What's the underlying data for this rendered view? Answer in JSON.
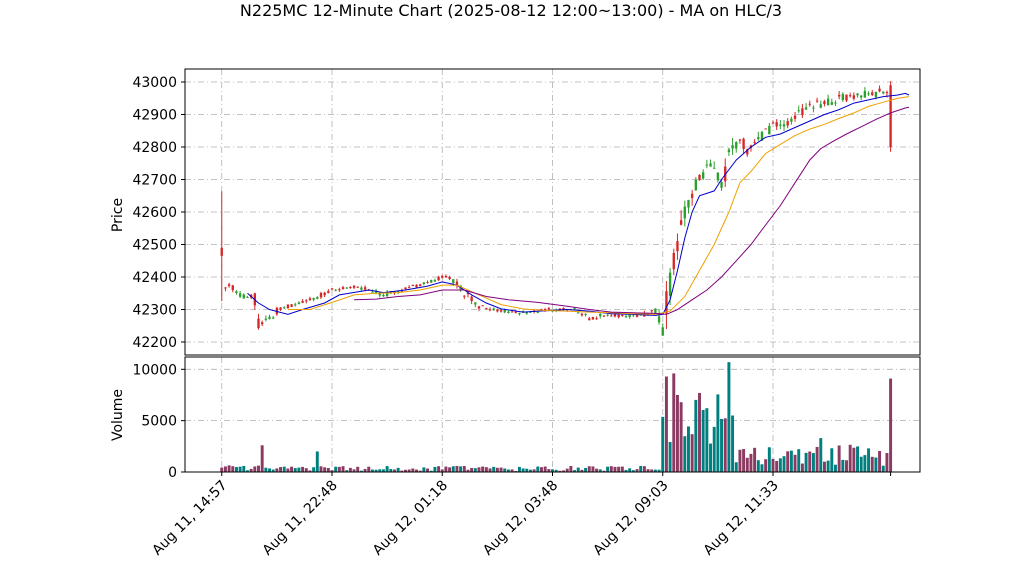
{
  "chart_data": {
    "type": "candlestick",
    "title": "N225MC 12-Minute Chart (2025-08-12 12:00~13:00) - MA on HLC/3",
    "price_panel": {
      "ylabel": "Price",
      "ylim": [
        42160,
        43040
      ],
      "yticks": [
        42200,
        42300,
        42400,
        42500,
        42600,
        42700,
        42800,
        42900,
        43000
      ],
      "grid": true
    },
    "volume_panel": {
      "ylabel": "Volume",
      "ylim": [
        0,
        11200
      ],
      "yticks": [
        0,
        5000,
        10000
      ],
      "grid": true
    },
    "x_axis": {
      "range": [
        -10,
        190
      ],
      "tick_labels": [
        "Aug 11, 14:57",
        "Aug 11, 22:48",
        "Aug 12, 01:18",
        "Aug 12, 03:48",
        "Aug 12, 09:03",
        "Aug 12, 11:33"
      ],
      "tick_positions": [
        0,
        30,
        60,
        90,
        120,
        150
      ]
    },
    "colors": {
      "up": "#2ca02c",
      "down": "#d62728",
      "volume_up": "#007f7f",
      "volume_down": "#8b3a62",
      "ma_fast": "#0000cc",
      "ma_mid": "#f0a000",
      "ma_slow": "#800080",
      "grid": "#b0b0b0"
    },
    "ma_series": [
      {
        "color_key": "ma_fast",
        "points": [
          [
            7,
            42350
          ],
          [
            10,
            42320
          ],
          [
            13,
            42300
          ],
          [
            18,
            42285
          ],
          [
            22,
            42300
          ],
          [
            28,
            42320
          ],
          [
            32,
            42345
          ],
          [
            40,
            42360
          ],
          [
            44,
            42352
          ],
          [
            50,
            42360
          ],
          [
            56,
            42372
          ],
          [
            60,
            42385
          ],
          [
            64,
            42375
          ],
          [
            68,
            42345
          ],
          [
            72,
            42320
          ],
          [
            76,
            42302
          ],
          [
            82,
            42292
          ],
          [
            88,
            42296
          ],
          [
            94,
            42300
          ],
          [
            100,
            42295
          ],
          [
            106,
            42287
          ],
          [
            112,
            42285
          ],
          [
            118,
            42282
          ],
          [
            120,
            42285
          ],
          [
            122,
            42330
          ],
          [
            124,
            42420
          ],
          [
            126,
            42520
          ],
          [
            128,
            42600
          ],
          [
            130,
            42650
          ],
          [
            134,
            42665
          ],
          [
            136,
            42700
          ],
          [
            140,
            42760
          ],
          [
            144,
            42800
          ],
          [
            148,
            42830
          ],
          [
            152,
            42840
          ],
          [
            156,
            42860
          ],
          [
            160,
            42880
          ],
          [
            164,
            42900
          ],
          [
            168,
            42915
          ],
          [
            172,
            42935
          ],
          [
            176,
            42945
          ],
          [
            180,
            42955
          ],
          [
            184,
            42960
          ],
          [
            186,
            42965
          ],
          [
            187,
            42960
          ]
        ]
      },
      {
        "color_key": "ma_mid",
        "points": [
          [
            18,
            42300
          ],
          [
            24,
            42300
          ],
          [
            30,
            42322
          ],
          [
            36,
            42345
          ],
          [
            42,
            42350
          ],
          [
            48,
            42352
          ],
          [
            54,
            42360
          ],
          [
            60,
            42375
          ],
          [
            64,
            42375
          ],
          [
            70,
            42345
          ],
          [
            76,
            42315
          ],
          [
            82,
            42302
          ],
          [
            88,
            42297
          ],
          [
            94,
            42295
          ],
          [
            100,
            42292
          ],
          [
            106,
            42290
          ],
          [
            112,
            42287
          ],
          [
            118,
            42285
          ],
          [
            122,
            42295
          ],
          [
            126,
            42340
          ],
          [
            130,
            42420
          ],
          [
            134,
            42500
          ],
          [
            138,
            42600
          ],
          [
            141,
            42690
          ],
          [
            144,
            42725
          ],
          [
            148,
            42780
          ],
          [
            152,
            42808
          ],
          [
            156,
            42835
          ],
          [
            160,
            42855
          ],
          [
            164,
            42870
          ],
          [
            168,
            42888
          ],
          [
            172,
            42905
          ],
          [
            176,
            42925
          ],
          [
            180,
            42938
          ],
          [
            184,
            42950
          ],
          [
            187,
            42955
          ]
        ]
      },
      {
        "color_key": "ma_slow",
        "points": [
          [
            36,
            42330
          ],
          [
            42,
            42332
          ],
          [
            48,
            42340
          ],
          [
            54,
            42345
          ],
          [
            60,
            42360
          ],
          [
            66,
            42360
          ],
          [
            72,
            42340
          ],
          [
            78,
            42330
          ],
          [
            86,
            42322
          ],
          [
            94,
            42310
          ],
          [
            100,
            42300
          ],
          [
            106,
            42292
          ],
          [
            112,
            42290
          ],
          [
            118,
            42288
          ],
          [
            121,
            42285
          ],
          [
            124,
            42300
          ],
          [
            128,
            42330
          ],
          [
            132,
            42360
          ],
          [
            136,
            42400
          ],
          [
            140,
            42450
          ],
          [
            144,
            42500
          ],
          [
            148,
            42560
          ],
          [
            152,
            42620
          ],
          [
            156,
            42690
          ],
          [
            160,
            42760
          ],
          [
            163,
            42795
          ],
          [
            166,
            42815
          ],
          [
            170,
            42840
          ],
          [
            174,
            42862
          ],
          [
            178,
            42885
          ],
          [
            182,
            42905
          ],
          [
            186,
            42920
          ],
          [
            187,
            42922
          ]
        ]
      }
    ]
  }
}
